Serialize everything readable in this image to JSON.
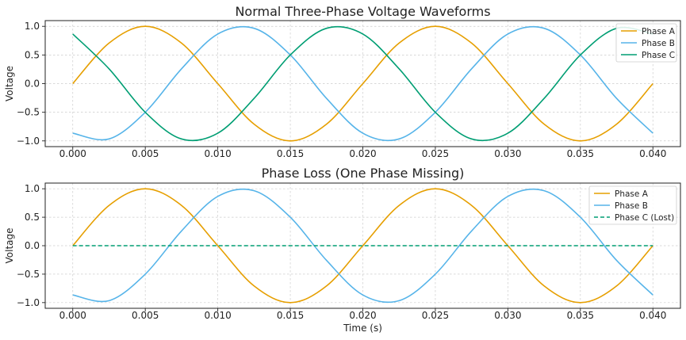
{
  "chart_data": [
    {
      "type": "line",
      "title": "Normal Three-Phase Voltage Waveforms",
      "xlabel": "",
      "ylabel": "Voltage",
      "xlim": [
        -0.0019,
        0.0419
      ],
      "ylim": [
        -1.1,
        1.1
      ],
      "xticks": [
        0.0,
        0.005,
        0.01,
        0.015,
        0.02,
        0.025,
        0.03,
        0.035,
        0.04
      ],
      "xtick_labels": [
        "0.000",
        "0.005",
        "0.010",
        "0.015",
        "0.020",
        "0.025",
        "0.030",
        "0.035",
        "0.040"
      ],
      "yticks": [
        -1.0,
        -0.5,
        0.0,
        0.5,
        1.0
      ],
      "ytick_labels": [
        "−1.0",
        "−0.5",
        "0.0",
        "0.5",
        "1.0"
      ],
      "grid": true,
      "legend_position": "top-right",
      "x": [
        0.0,
        0.0025,
        0.005,
        0.0075,
        0.01,
        0.0125,
        0.015,
        0.0175,
        0.02,
        0.0225,
        0.025,
        0.0275,
        0.03,
        0.0325,
        0.035,
        0.0375,
        0.04
      ],
      "series": [
        {
          "name": "Phase A",
          "color": "#e69f00",
          "style": "solid",
          "values": [
            0.0,
            0.707,
            1.0,
            0.707,
            0.0,
            -0.707,
            -1.0,
            -0.707,
            0.0,
            0.707,
            1.0,
            0.707,
            0.0,
            -0.707,
            -1.0,
            -0.707,
            0.0
          ]
        },
        {
          "name": "Phase B",
          "color": "#56b4e9",
          "style": "solid",
          "values": [
            -0.866,
            -0.966,
            -0.5,
            0.259,
            0.866,
            0.966,
            0.5,
            -0.259,
            -0.866,
            -0.966,
            -0.5,
            0.259,
            0.866,
            0.966,
            0.5,
            -0.259,
            -0.866
          ]
        },
        {
          "name": "Phase C",
          "color": "#009e73",
          "style": "solid",
          "values": [
            0.866,
            0.259,
            -0.5,
            -0.966,
            -0.866,
            -0.259,
            0.5,
            0.966,
            0.866,
            0.259,
            -0.5,
            -0.966,
            -0.866,
            -0.259,
            0.5,
            0.966,
            0.866
          ]
        }
      ]
    },
    {
      "type": "line",
      "title": "Phase Loss (One Phase Missing)",
      "xlabel": "Time (s)",
      "ylabel": "Voltage",
      "xlim": [
        -0.0019,
        0.0419
      ],
      "ylim": [
        -1.1,
        1.1
      ],
      "xticks": [
        0.0,
        0.005,
        0.01,
        0.015,
        0.02,
        0.025,
        0.03,
        0.035,
        0.04
      ],
      "xtick_labels": [
        "0.000",
        "0.005",
        "0.010",
        "0.015",
        "0.020",
        "0.025",
        "0.030",
        "0.035",
        "0.040"
      ],
      "yticks": [
        -1.0,
        -0.5,
        0.0,
        0.5,
        1.0
      ],
      "ytick_labels": [
        "−1.0",
        "−0.5",
        "0.0",
        "0.5",
        "1.0"
      ],
      "grid": true,
      "legend_position": "top-right",
      "x": [
        0.0,
        0.0025,
        0.005,
        0.0075,
        0.01,
        0.0125,
        0.015,
        0.0175,
        0.02,
        0.0225,
        0.025,
        0.0275,
        0.03,
        0.0325,
        0.035,
        0.0375,
        0.04
      ],
      "series": [
        {
          "name": "Phase A",
          "color": "#e69f00",
          "style": "solid",
          "values": [
            0.0,
            0.707,
            1.0,
            0.707,
            0.0,
            -0.707,
            -1.0,
            -0.707,
            0.0,
            0.707,
            1.0,
            0.707,
            0.0,
            -0.707,
            -1.0,
            -0.707,
            0.0
          ]
        },
        {
          "name": "Phase B",
          "color": "#56b4e9",
          "style": "solid",
          "values": [
            -0.866,
            -0.966,
            -0.5,
            0.259,
            0.866,
            0.966,
            0.5,
            -0.259,
            -0.866,
            -0.966,
            -0.5,
            0.259,
            0.866,
            0.966,
            0.5,
            -0.259,
            -0.866
          ]
        },
        {
          "name": "Phase C (Lost)",
          "color": "#009e73",
          "style": "dashed",
          "values": [
            0.0,
            0.0,
            0.0,
            0.0,
            0.0,
            0.0,
            0.0,
            0.0,
            0.0,
            0.0,
            0.0,
            0.0,
            0.0,
            0.0,
            0.0,
            0.0,
            0.0
          ]
        }
      ]
    }
  ]
}
